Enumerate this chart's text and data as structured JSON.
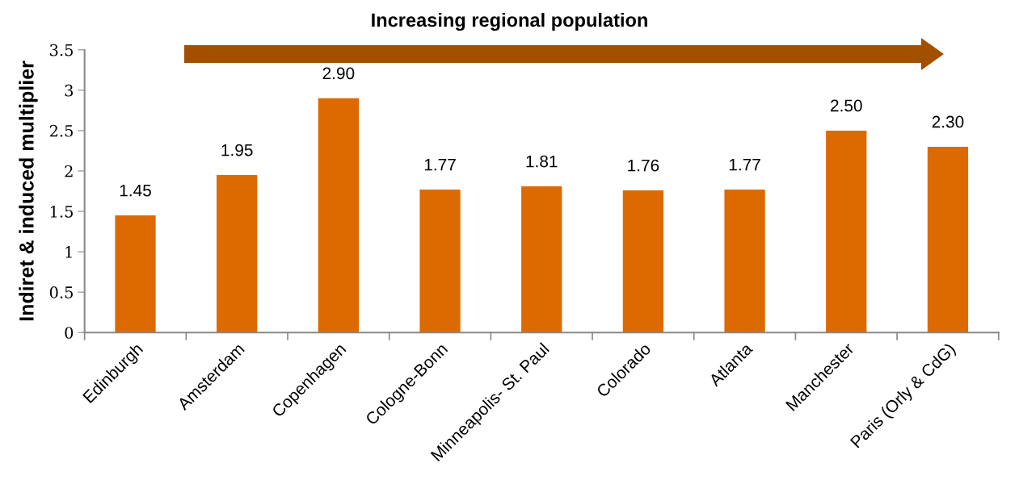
{
  "chart_data": {
    "type": "bar",
    "title": "Increasing regional population",
    "ylabel": "Indiret & induced multiplier",
    "categories": [
      "Edinburgh",
      "Amsterdam",
      "Copenhagen",
      "Cologne-Bonn",
      "Minneapolis- St. Paul",
      "Colorado",
      "Atlanta",
      "Manchester",
      "Paris (Orly & CdG)"
    ],
    "values": [
      1.45,
      1.95,
      2.9,
      1.77,
      1.81,
      1.76,
      1.77,
      2.5,
      2.3
    ],
    "value_labels": [
      "1.45",
      "1.95",
      "2.90",
      "1.77",
      "1.81",
      "1.76",
      "1.77",
      "2.50",
      "2.30"
    ],
    "color": "#dd6a00",
    "ylim": [
      0,
      3.5
    ],
    "yticks": [
      0,
      0.5,
      1,
      1.5,
      2,
      2.5,
      3,
      3.5
    ],
    "grid": false
  }
}
